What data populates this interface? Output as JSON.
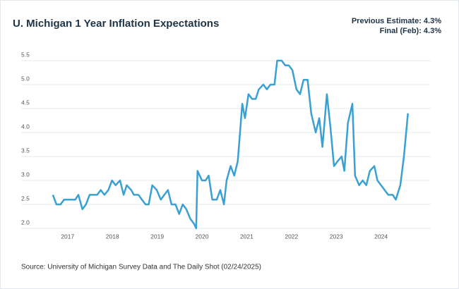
{
  "chart_data": {
    "type": "line",
    "title": "U. Michigan 1 Year Inflation Expectations",
    "annotations": [
      "Previous Estimate: 4.3%",
      "Final (Feb): 4.3%"
    ],
    "source": "Source: University of Michigan Survey Data and The Daily Shot (02/24/2025)",
    "x": [
      2016.67,
      2016.75,
      2016.84,
      2016.92,
      2017.17,
      2017.24,
      2017.33,
      2017.41,
      2017.49,
      2017.66,
      2017.74,
      2017.82,
      2017.91,
      2017.99,
      2018.07,
      2018.17,
      2018.25,
      2018.32,
      2018.42,
      2018.48,
      2018.58,
      2018.66,
      2018.74,
      2018.81,
      2018.89,
      2018.99,
      2019.08,
      2019.16,
      2019.24,
      2019.32,
      2019.41,
      2019.49,
      2019.57,
      2019.65,
      2019.74,
      2019.82,
      2019.87,
      2019.9,
      2020.0,
      2020.08,
      2020.15,
      2020.23,
      2020.33,
      2020.41,
      2020.49,
      2020.55,
      2020.64,
      2020.72,
      2020.8,
      2020.9,
      2020.96,
      2021.04,
      2021.12,
      2021.2,
      2021.27,
      2021.37,
      2021.45,
      2021.53,
      2021.62,
      2021.68,
      2021.78,
      2021.86,
      2021.94,
      2022.02,
      2022.11,
      2022.19,
      2022.27,
      2022.36,
      2022.44,
      2022.54,
      2022.62,
      2022.69,
      2022.79,
      2022.87,
      2022.95,
      2023.03,
      2023.12,
      2023.18,
      2023.26,
      2023.36,
      2023.42,
      2023.51,
      2023.59,
      2023.67,
      2023.75,
      2023.85,
      2023.92,
      2024.0,
      2024.08,
      2024.16,
      2024.26,
      2024.33,
      2024.43,
      2024.51,
      2024.6
    ],
    "series": [
      {
        "color": "#3aa0d2",
        "values": [
          2.7,
          2.5,
          2.5,
          2.6,
          2.6,
          2.7,
          2.4,
          2.5,
          2.7,
          2.7,
          2.8,
          2.7,
          2.8,
          3.0,
          2.9,
          3.0,
          2.7,
          2.9,
          2.8,
          2.7,
          2.7,
          2.6,
          2.5,
          2.5,
          2.9,
          2.8,
          2.6,
          2.7,
          2.8,
          2.5,
          2.5,
          2.3,
          2.5,
          2.4,
          2.2,
          2.1,
          2.0,
          3.2,
          3.0,
          3.0,
          3.1,
          2.6,
          2.6,
          2.8,
          2.5,
          3.0,
          3.3,
          3.1,
          3.4,
          4.6,
          4.3,
          4.8,
          4.7,
          4.7,
          4.9,
          5.0,
          4.9,
          5.0,
          5.0,
          5.5,
          5.5,
          5.4,
          5.4,
          5.3,
          4.9,
          4.8,
          5.1,
          5.1,
          4.4,
          4.0,
          4.3,
          3.7,
          4.8,
          4.1,
          3.3,
          3.4,
          3.5,
          3.2,
          4.2,
          4.6,
          3.1,
          2.9,
          3.0,
          2.9,
          3.2,
          3.3,
          3.0,
          2.9,
          2.8,
          2.7,
          2.7,
          2.6,
          2.9,
          3.5,
          4.4
        ]
      }
    ],
    "xlim": [
      2016.12,
      2025.11
    ],
    "xticks": [
      2017,
      2018,
      2019,
      2020,
      2021,
      2022,
      2023,
      2024
    ],
    "ylim": [
      2.0,
      5.5
    ],
    "yticks": [
      {
        "value": 2,
        "label": "2.0"
      },
      2.5,
      {
        "value": 3,
        "label": "3.0"
      },
      3.5,
      {
        "value": 4,
        "label": "4.0"
      },
      4.5,
      {
        "value": 5,
        "label": "5.0"
      },
      5.5
    ],
    "grid": true
  }
}
